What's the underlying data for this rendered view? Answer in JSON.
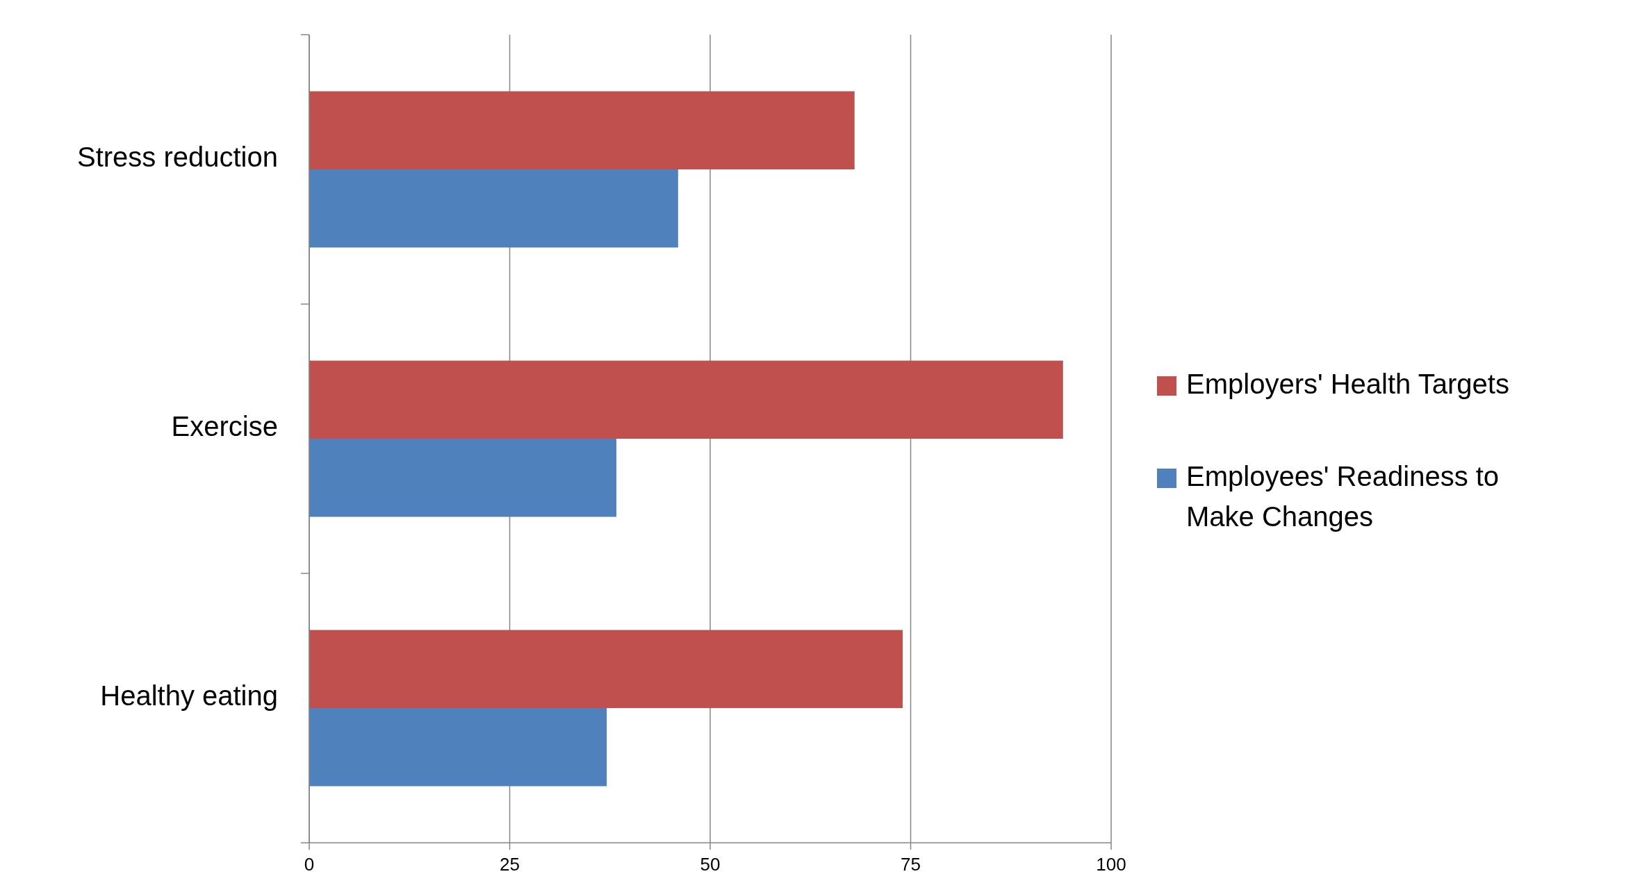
{
  "chart_data": {
    "type": "bar",
    "orientation": "horizontal",
    "categories": [
      "Stress reduction",
      "Exercise",
      "Healthy eating"
    ],
    "series": [
      {
        "name": "Employers' Health Targets",
        "color": "#c0504d",
        "values": [
          68,
          94,
          74
        ]
      },
      {
        "name": "Employees' Readiness to Make Changes",
        "color": "#4f81bd",
        "values": [
          46,
          38.3,
          37.1
        ]
      }
    ],
    "xlim": [
      0,
      100
    ],
    "xticks": [
      0,
      25,
      50,
      75,
      100
    ],
    "grid": "x",
    "legend": "right"
  }
}
